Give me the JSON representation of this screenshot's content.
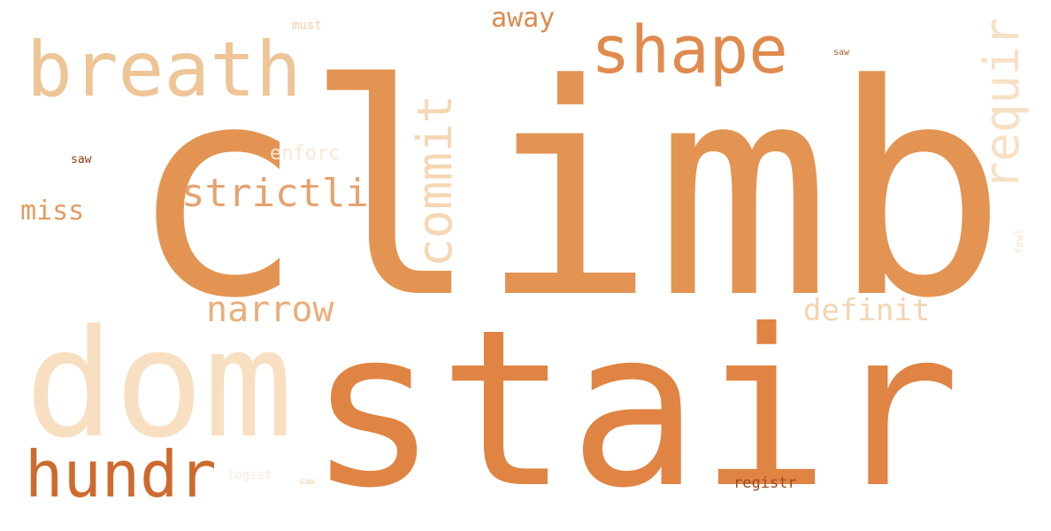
{
  "word_cloud": {
    "background": "#ffffff",
    "words": [
      {
        "id": "climb",
        "text": "climb",
        "color": "#e39453",
        "rotated": false
      },
      {
        "id": "stair",
        "text": "stair",
        "color": "#e08444",
        "rotated": false
      },
      {
        "id": "dom",
        "text": "dom",
        "color": "#f8dfc2",
        "rotated": false
      },
      {
        "id": "breath",
        "text": "breath",
        "color": "#eec596",
        "rotated": false
      },
      {
        "id": "shape",
        "text": "shape",
        "color": "#e08b4d",
        "rotated": false
      },
      {
        "id": "hundr",
        "text": "hundr",
        "color": "#ce6a2e",
        "rotated": false
      },
      {
        "id": "commit",
        "text": "commit",
        "color": "#f6d7b3",
        "rotated": true
      },
      {
        "id": "requir",
        "text": "requir",
        "color": "#f8e0c5",
        "rotated": true
      },
      {
        "id": "strictli",
        "text": "strictli",
        "color": "#e6a26e",
        "rotated": false
      },
      {
        "id": "narrow",
        "text": "narrow",
        "color": "#eaae7a",
        "rotated": false
      },
      {
        "id": "definit",
        "text": "definit",
        "color": "#f4d4b0",
        "rotated": false
      },
      {
        "id": "miss",
        "text": "miss",
        "color": "#e39b60",
        "rotated": false
      },
      {
        "id": "away",
        "text": "away",
        "color": "#dd8a4c",
        "rotated": false
      },
      {
        "id": "enforc",
        "text": "enforc",
        "color": "#fae7d4",
        "rotated": false
      },
      {
        "id": "registr",
        "text": "registr",
        "color": "#a14a20",
        "rotated": false
      },
      {
        "id": "must",
        "text": "must",
        "color": "#f5d0ad",
        "rotated": false
      },
      {
        "id": "saw1",
        "text": "saw",
        "color": "#8c3b14",
        "rotated": false
      },
      {
        "id": "logist",
        "text": "logist",
        "color": "#fbebd9",
        "rotated": false
      },
      {
        "id": "saw2",
        "text": "saw",
        "color": "#f3cfa6",
        "rotated": false
      },
      {
        "id": "saw3",
        "text": "saw",
        "color": "#b25a26",
        "rotated": false
      },
      {
        "id": "fowl",
        "text": "fowl",
        "color": "#f9e4cc",
        "rotated": true
      }
    ]
  }
}
